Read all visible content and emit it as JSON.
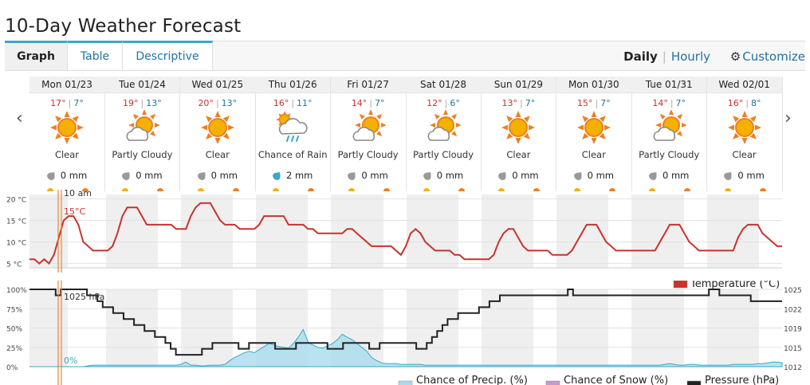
{
  "page_title": "10-Day Weather Forecast",
  "tabs": [
    {
      "label": "Graph",
      "active": true
    },
    {
      "label": "Table",
      "active": false
    },
    {
      "label": "Descriptive",
      "active": false
    }
  ],
  "view_toggle": {
    "daily": "Daily",
    "hourly": "Hourly"
  },
  "customize": {
    "label": "Customize",
    "icon": "gear-icon"
  },
  "nav": {
    "prev": "‹",
    "next": "›"
  },
  "days": [
    {
      "date": "Mon 01/23",
      "hi": "17°",
      "lo": "7°",
      "condition": "Clear",
      "icon": "sun-icon",
      "precip": "0 mm",
      "rain": false
    },
    {
      "date": "Tue 01/24",
      "hi": "19°",
      "lo": "13°",
      "condition": "Partly Cloudy",
      "icon": "partly-cloudy-icon",
      "precip": "0 mm",
      "rain": false
    },
    {
      "date": "Wed 01/25",
      "hi": "20°",
      "lo": "13°",
      "condition": "Clear",
      "icon": "sun-icon",
      "precip": "0 mm",
      "rain": false
    },
    {
      "date": "Thu 01/26",
      "hi": "16°",
      "lo": "11°",
      "condition": "Chance of Rain",
      "icon": "rain-icon",
      "precip": "2 mm",
      "rain": true
    },
    {
      "date": "Fri 01/27",
      "hi": "14°",
      "lo": "7°",
      "condition": "Partly Cloudy",
      "icon": "partly-cloudy-icon",
      "precip": "0 mm",
      "rain": false
    },
    {
      "date": "Sat 01/28",
      "hi": "12°",
      "lo": "6°",
      "condition": "Partly Cloudy",
      "icon": "partly-cloudy-icon",
      "precip": "0 mm",
      "rain": false
    },
    {
      "date": "Sun 01/29",
      "hi": "13°",
      "lo": "7°",
      "condition": "Clear",
      "icon": "sun-icon",
      "precip": "0 mm",
      "rain": false
    },
    {
      "date": "Mon 01/30",
      "hi": "15°",
      "lo": "7°",
      "condition": "Clear",
      "icon": "sun-icon",
      "precip": "0 mm",
      "rain": false
    },
    {
      "date": "Tue 01/31",
      "hi": "14°",
      "lo": "7°",
      "condition": "Partly Cloudy",
      "icon": "partly-cloudy-icon",
      "precip": "0 mm",
      "rain": false
    },
    {
      "date": "Wed 02/01",
      "hi": "16°",
      "lo": "8°",
      "condition": "Clear",
      "icon": "sun-icon",
      "precip": "0 mm",
      "rain": false
    }
  ],
  "cursor": {
    "time": "10 am",
    "temp": "15°C",
    "pressure": "1025 hPa",
    "precip": "0%"
  },
  "colors": {
    "temperature": "#c8332b",
    "precip": "#a9dced",
    "snow": "#c59bd0",
    "pressure": "#222222",
    "accent": "#1d73a6"
  },
  "chart_data": [
    {
      "type": "line",
      "series": [
        {
          "name": "Temperature (°C)",
          "values": [
            6,
            6,
            5,
            6,
            5,
            7,
            11,
            15,
            16,
            16,
            14,
            10,
            9,
            8,
            8,
            8,
            8,
            9,
            12,
            16,
            18,
            18,
            18,
            16,
            14,
            14,
            14,
            14,
            14,
            14,
            13,
            13,
            13,
            16,
            18,
            19,
            19,
            19,
            17,
            15,
            14,
            14,
            14,
            13,
            13,
            13,
            13,
            14,
            16,
            16,
            16,
            16,
            16,
            14,
            14,
            14,
            14,
            13,
            13,
            12,
            12,
            12,
            12,
            12,
            12,
            13,
            13,
            12,
            11,
            10,
            9,
            9,
            9,
            9,
            9,
            8,
            7,
            9,
            12,
            13,
            12,
            10,
            9,
            8,
            8,
            8,
            8,
            7,
            7,
            6,
            6,
            6,
            6,
            6,
            6,
            7,
            10,
            12,
            13,
            13,
            11,
            9,
            8,
            8,
            8,
            8,
            8,
            7,
            7,
            7,
            7,
            8,
            10,
            12,
            14,
            14,
            14,
            12,
            10,
            9,
            8,
            8,
            8,
            8,
            8,
            8,
            8,
            8,
            8,
            10,
            12,
            14,
            14,
            14,
            12,
            10,
            9,
            8,
            8,
            8,
            8,
            8,
            8,
            8,
            8,
            11,
            13,
            14,
            14,
            14,
            12,
            11,
            10,
            9,
            9
          ]
        }
      ],
      "y_ticks": [
        "20 °C",
        "15 °C",
        "10 °C",
        "5 °C"
      ],
      "ylim": [
        4,
        21
      ]
    },
    {
      "type": "area",
      "series": [
        {
          "name": "Chance of Precip. (%)",
          "values": [
            0,
            0,
            0,
            0,
            0,
            0,
            0,
            0,
            0,
            0,
            0,
            0,
            1,
            2,
            2,
            2,
            2,
            2,
            2,
            2,
            2,
            2,
            2,
            2,
            2,
            2,
            2,
            2,
            2,
            2,
            2,
            3,
            6,
            2,
            2,
            1,
            1,
            2,
            2,
            2,
            3,
            8,
            12,
            15,
            18,
            20,
            18,
            22,
            26,
            30,
            28,
            26,
            25,
            24,
            30,
            38,
            48,
            32,
            28,
            25,
            24,
            27,
            30,
            35,
            42,
            38,
            35,
            30,
            25,
            20,
            12,
            8,
            5,
            4,
            4,
            4,
            3,
            3,
            3,
            3,
            3,
            2,
            2,
            2,
            2,
            2,
            2,
            2,
            2,
            2,
            2,
            2,
            2,
            2,
            2,
            2,
            2,
            2,
            2,
            2,
            2,
            2,
            2,
            2,
            2,
            2,
            2,
            2,
            2,
            2,
            2,
            2,
            2,
            2,
            2,
            2,
            2,
            2,
            2,
            2,
            2,
            2,
            2,
            2,
            2,
            2,
            2,
            2,
            2,
            2,
            3,
            4,
            3,
            2,
            2,
            3,
            3,
            2,
            2,
            2,
            2,
            2,
            2,
            2,
            3,
            3,
            3,
            3,
            3,
            4,
            4,
            5,
            6,
            6,
            5
          ]
        },
        {
          "name": "Chance of Snow (%)",
          "values": []
        },
        {
          "name": "Pressure (hPa)",
          "values": [
            1025,
            1025,
            1025,
            1025,
            1025,
            1024,
            1025,
            1025,
            1025,
            1025,
            1025,
            1024,
            1024,
            1023,
            1022,
            1022,
            1021,
            1021,
            1020,
            1020,
            1019,
            1019,
            1018,
            1018,
            1017,
            1017,
            1016,
            1015,
            1014,
            1014,
            1014,
            1014,
            1014,
            1015,
            1015,
            1016,
            1016,
            1016,
            1016,
            1016,
            1015,
            1015,
            1016,
            1016,
            1016,
            1016,
            1016,
            1015,
            1015,
            1015,
            1015,
            1016,
            1016,
            1016,
            1016,
            1016,
            1016,
            1015,
            1015,
            1015,
            1016,
            1016,
            1016,
            1016,
            1016,
            1015,
            1015,
            1016,
            1016,
            1016,
            1016,
            1016,
            1016,
            1016,
            1015,
            1015,
            1016,
            1017,
            1018,
            1019,
            1020,
            1020,
            1021,
            1021,
            1021,
            1021,
            1022,
            1022,
            1023,
            1023,
            1024,
            1024,
            1024,
            1024,
            1024,
            1024,
            1024,
            1024,
            1024,
            1024,
            1024,
            1024,
            1024,
            1025,
            1024,
            1024,
            1024,
            1024,
            1024,
            1024,
            1024,
            1024,
            1024,
            1024,
            1024,
            1024,
            1024,
            1024,
            1024,
            1024,
            1024,
            1024,
            1024,
            1024,
            1024,
            1024,
            1024,
            1024,
            1024,
            1024,
            1025,
            1025,
            1024,
            1024,
            1024,
            1024,
            1024,
            1024,
            1023,
            1023,
            1023,
            1023,
            1023,
            1023,
            1023
          ]
        }
      ],
      "y_ticks_left": [
        "100%",
        "75%",
        "50%",
        "25%",
        "0%"
      ],
      "y_ticks_right": [
        "1025",
        "1022",
        "1019",
        "1015",
        "1012"
      ],
      "ylim_left": [
        0,
        100
      ],
      "ylim_right": [
        1012,
        1025
      ],
      "legend": [
        "Temperature (°C)",
        "Chance of Precip. (%)",
        "Chance of Snow (%)",
        "Pressure (hPa)"
      ]
    }
  ]
}
